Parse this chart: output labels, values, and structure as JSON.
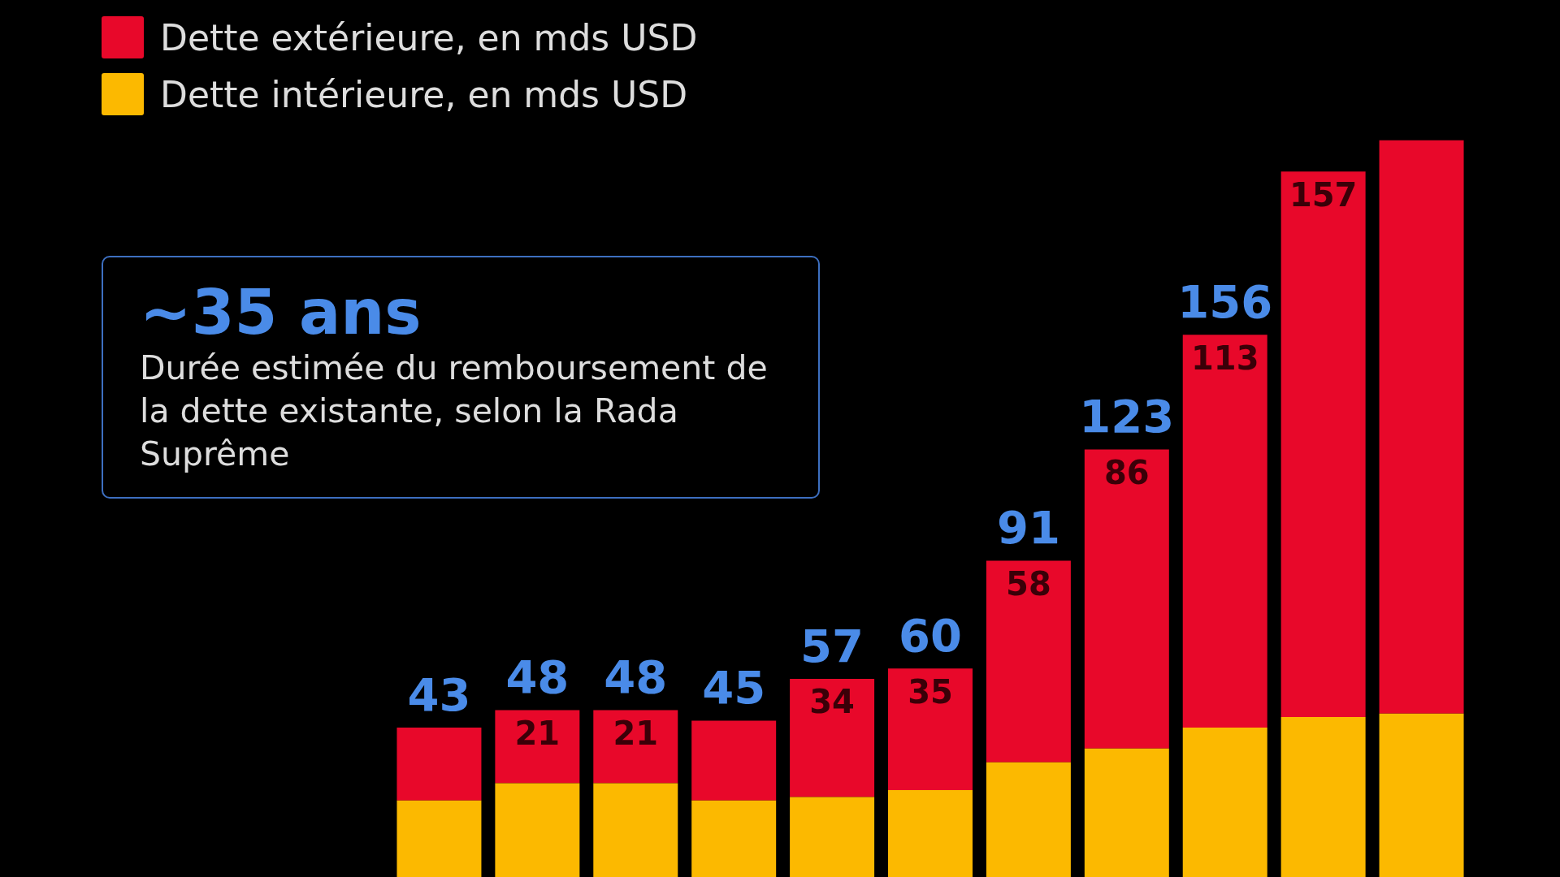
{
  "chart_data": {
    "type": "bar",
    "stacked": true,
    "categories": [
      null,
      null,
      null,
      null,
      null,
      null,
      null,
      null,
      null,
      null,
      null
    ],
    "series": [
      {
        "name": "Dette intérieure, en mds USD",
        "color": "#fcb900",
        "values": [
          22,
          27,
          27,
          22,
          23,
          25,
          33,
          37,
          43,
          46,
          47
        ]
      },
      {
        "name": "Dette extérieure, en mds USD",
        "color": "#e8082a",
        "values": [
          21,
          21,
          21,
          23,
          34,
          35,
          58,
          86,
          113,
          157,
          165
        ],
        "value_labels": [
          null,
          "21",
          "21",
          null,
          "34",
          "35",
          "58",
          "86",
          "113",
          "157",
          null
        ]
      }
    ],
    "totals": [
      "43",
      "48",
      "48",
      "45",
      "57",
      "60",
      "91",
      "123",
      "156",
      null,
      null
    ],
    "tick_labels": false,
    "legend": "top left",
    "annotations": [
      "~35 ans",
      "Durée estimée du remboursement de la dette existante, selon la Rada Suprême"
    ]
  }
}
